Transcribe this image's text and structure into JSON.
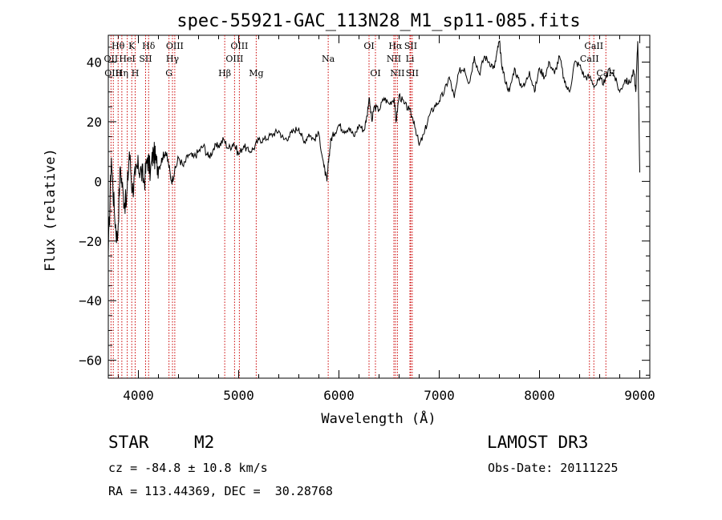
{
  "chart_data": {
    "type": "line",
    "title": "spec-55921-GAC_113N28_M1_sp11-085.fits",
    "xlabel": "Wavelength (Å)",
    "ylabel": "Flux (relative)",
    "xlim": [
      3700,
      9100
    ],
    "ylim": [
      -66,
      49
    ],
    "xticks": [
      4000,
      5000,
      6000,
      7000,
      8000,
      9000
    ],
    "yticks": [
      -60,
      -40,
      -20,
      0,
      20,
      40
    ],
    "series": [
      {
        "name": "flux",
        "x": [
          3700,
          3730,
          3760,
          3790,
          3820,
          3850,
          3880,
          3910,
          3940,
          3970,
          4000,
          4030,
          4060,
          4090,
          4120,
          4150,
          4180,
          4210,
          4240,
          4270,
          4300,
          4330,
          4360,
          4400,
          4450,
          4500,
          4550,
          4600,
          4650,
          4700,
          4750,
          4800,
          4850,
          4900,
          4950,
          5000,
          5050,
          5100,
          5150,
          5200,
          5250,
          5300,
          5350,
          5400,
          5450,
          5500,
          5550,
          5600,
          5650,
          5700,
          5750,
          5800,
          5850,
          5880,
          5900,
          5920,
          5950,
          6000,
          6050,
          6100,
          6150,
          6200,
          6250,
          6280,
          6300,
          6330,
          6350,
          6400,
          6450,
          6500,
          6550,
          6570,
          6600,
          6650,
          6700,
          6750,
          6800,
          6850,
          6900,
          6950,
          7000,
          7050,
          7100,
          7150,
          7200,
          7250,
          7300,
          7350,
          7400,
          7450,
          7500,
          7550,
          7580,
          7600,
          7620,
          7650,
          7700,
          7750,
          7800,
          7850,
          7900,
          7950,
          8000,
          8050,
          8100,
          8150,
          8200,
          8250,
          8300,
          8350,
          8400,
          8450,
          8500,
          8550,
          8600,
          8650,
          8700,
          8750,
          8800,
          8850,
          8900,
          8940,
          8960,
          8980,
          9000
        ],
        "y": [
          -25,
          8,
          -10,
          -20,
          5,
          -5,
          -8,
          10,
          -3,
          2,
          5,
          3,
          0,
          8,
          3,
          10,
          6,
          5,
          8,
          10,
          6,
          0,
          3,
          8,
          5,
          9,
          8,
          10,
          12,
          8,
          11,
          12,
          14,
          11,
          13,
          9,
          12,
          10,
          11,
          14,
          14,
          15,
          16,
          17,
          14,
          15,
          17,
          18,
          13,
          16,
          14,
          16,
          5,
          0,
          8,
          14,
          16,
          19,
          17,
          18,
          15,
          19,
          17,
          22,
          28,
          20,
          25,
          24,
          28,
          26,
          28,
          20,
          29,
          26,
          24,
          20,
          12,
          16,
          22,
          25,
          27,
          30,
          35,
          28,
          37,
          38,
          33,
          42,
          36,
          42,
          40,
          38,
          44,
          47,
          40,
          35,
          30,
          38,
          33,
          32,
          37,
          30,
          38,
          35,
          40,
          36,
          42,
          33,
          30,
          40,
          39,
          35,
          35,
          32,
          34,
          33,
          38,
          35,
          30,
          34,
          33,
          37,
          30,
          47,
          3
        ]
      }
    ],
    "spectral_lines": [
      {
        "name": "Hθ",
        "wavelength": 3798,
        "row": 0
      },
      {
        "name": "K",
        "wavelength": 3934,
        "row": 0
      },
      {
        "name": "Hδ",
        "wavelength": 4102,
        "row": 0
      },
      {
        "name": "OIII",
        "wavelength": 4363,
        "row": 0
      },
      {
        "name": "OIII",
        "wavelength": 5007,
        "row": 0
      },
      {
        "name": "OI",
        "wavelength": 6300,
        "row": 0
      },
      {
        "name": "Hα",
        "wavelength": 6563,
        "row": 0
      },
      {
        "name": "SII",
        "wavelength": 6716,
        "row": 0
      },
      {
        "name": "CaII",
        "wavelength": 8542,
        "row": 0
      },
      {
        "name": "OII",
        "wavelength": 3727,
        "row": 1
      },
      {
        "name": "HeI",
        "wavelength": 3889,
        "row": 1
      },
      {
        "name": "SII",
        "wavelength": 4072,
        "row": 1
      },
      {
        "name": "Hγ",
        "wavelength": 4340,
        "row": 1
      },
      {
        "name": "OIII",
        "wavelength": 4959,
        "row": 1
      },
      {
        "name": "Na",
        "wavelength": 5893,
        "row": 1
      },
      {
        "name": "NII",
        "wavelength": 6548,
        "row": 1
      },
      {
        "name": "Li",
        "wavelength": 6708,
        "row": 1
      },
      {
        "name": "CaII",
        "wavelength": 8498,
        "row": 1
      },
      {
        "name": "OIII",
        "wavelength": 3750,
        "row": 2
      },
      {
        "name": "Hη",
        "wavelength": 3835,
        "row": 2
      },
      {
        "name": "H",
        "wavelength": 3968,
        "row": 2
      },
      {
        "name": "G",
        "wavelength": 4305,
        "row": 2
      },
      {
        "name": "Hβ",
        "wavelength": 4861,
        "row": 2
      },
      {
        "name": "Mg",
        "wavelength": 5175,
        "row": 2
      },
      {
        "name": "OI",
        "wavelength": 6364,
        "row": 2
      },
      {
        "name": "NII",
        "wavelength": 6583,
        "row": 2
      },
      {
        "name": "SII",
        "wavelength": 6731,
        "row": 2
      },
      {
        "name": "CaII",
        "wavelength": 8662,
        "row": 2
      }
    ]
  },
  "info": {
    "object_class": "STAR",
    "subclass": "M2",
    "survey": "LAMOST DR3",
    "cz": "cz = -84.8 ± 10.8 km/s",
    "obs_date": "Obs-Date: 20111225",
    "coords": "RA = 113.44369, DEC =  30.28768"
  },
  "colors": {
    "line": "#000000",
    "marker_lines": "#cc0000",
    "background": "#ffffff"
  }
}
